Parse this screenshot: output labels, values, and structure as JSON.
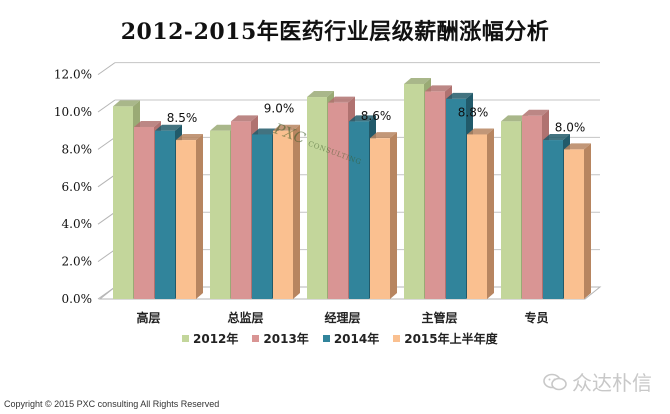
{
  "title": "2012-2015年医药行业层级薪酬涨幅分析",
  "legend": [
    {
      "label": "2012年",
      "color": "#c3d69b",
      "side": "#9aaa75"
    },
    {
      "label": "2013年",
      "color": "#d99594",
      "side": "#b07270"
    },
    {
      "label": "2014年",
      "color": "#31849b",
      "side": "#215a6a"
    },
    {
      "label": "2015年上半年度",
      "color": "#fac090",
      "side": "#b78560"
    }
  ],
  "watermark": {
    "main": "PXC",
    "sub": "CONSULTING",
    "cn": "众达朴信"
  },
  "footer": {
    "copyright": "Copyright © 2015  PXC consulting All Rights Reserved",
    "brand": "众达朴信"
  },
  "chart_data": {
    "type": "bar",
    "title": "2012-2015年医药行业层级薪酬涨幅分析",
    "xlabel": "",
    "ylabel": "",
    "ylim": [
      0,
      12
    ],
    "yticks": [
      "0.0%",
      "2.0%",
      "4.0%",
      "6.0%",
      "8.0%",
      "10.0%",
      "12.0%"
    ],
    "grid": true,
    "legend_position": "bottom",
    "style": "3d-clustered-column",
    "categories": [
      "高层",
      "总监层",
      "经理层",
      "主管层",
      "专员"
    ],
    "series": [
      {
        "name": "2012年",
        "values": [
          10.3,
          9.0,
          10.8,
          11.5,
          9.5
        ]
      },
      {
        "name": "2013年",
        "values": [
          9.2,
          9.5,
          10.5,
          11.1,
          9.8
        ]
      },
      {
        "name": "2014年",
        "values": [
          9.0,
          8.8,
          9.5,
          10.7,
          8.5
        ]
      },
      {
        "name": "2015年上半年度",
        "values": [
          8.5,
          9.0,
          8.6,
          8.8,
          8.0
        ]
      }
    ],
    "data_labels": {
      "series": "2015年上半年度",
      "labels": [
        "8.5%",
        "9.0%",
        "8.6%",
        "8.8%",
        "8.0%"
      ]
    }
  }
}
